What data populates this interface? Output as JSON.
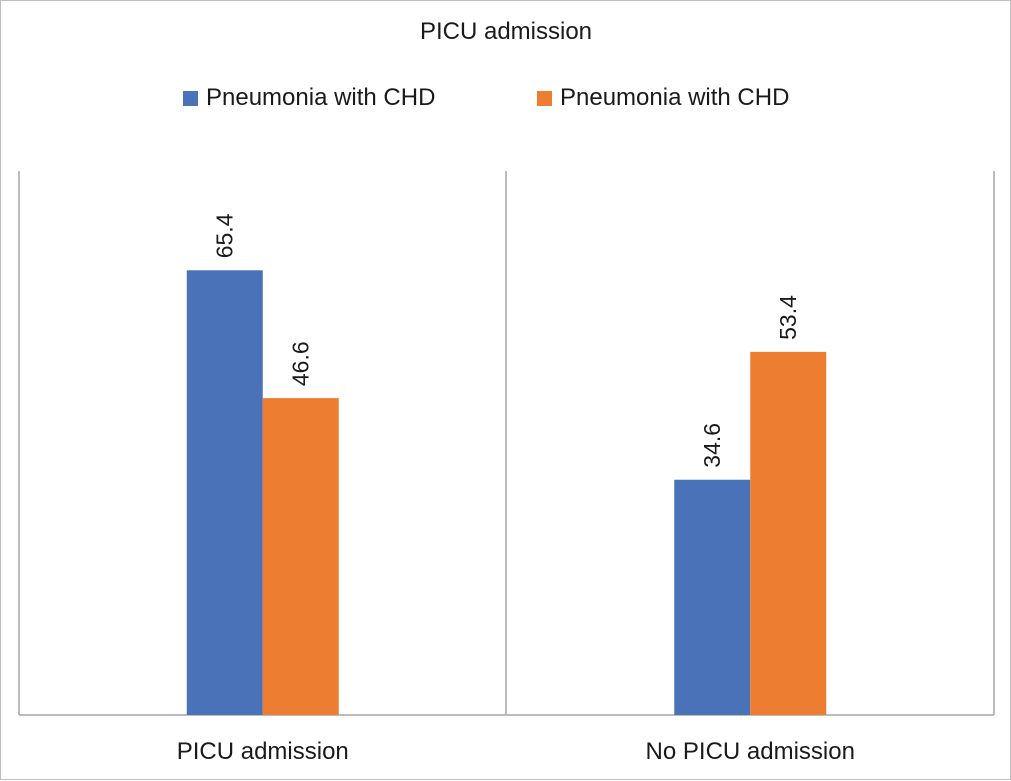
{
  "chart_data": {
    "type": "bar",
    "title": "PICU admission",
    "categories": [
      "PICU admission",
      "No PICU admission"
    ],
    "series": [
      {
        "name": "Pneumonia with CHD",
        "values": [
          65.4,
          34.6
        ],
        "color": "#4a72b8"
      },
      {
        "name": "Pneumonia with CHD",
        "values": [
          46.6,
          53.4
        ],
        "color": "#ed7d31"
      }
    ],
    "data_labels": [
      [
        "65.4",
        "34.6"
      ],
      [
        "46.6",
        "53.4"
      ]
    ],
    "ylim": [
      0,
      80
    ],
    "grid": false,
    "legend_position": "top",
    "category_separators": true
  }
}
